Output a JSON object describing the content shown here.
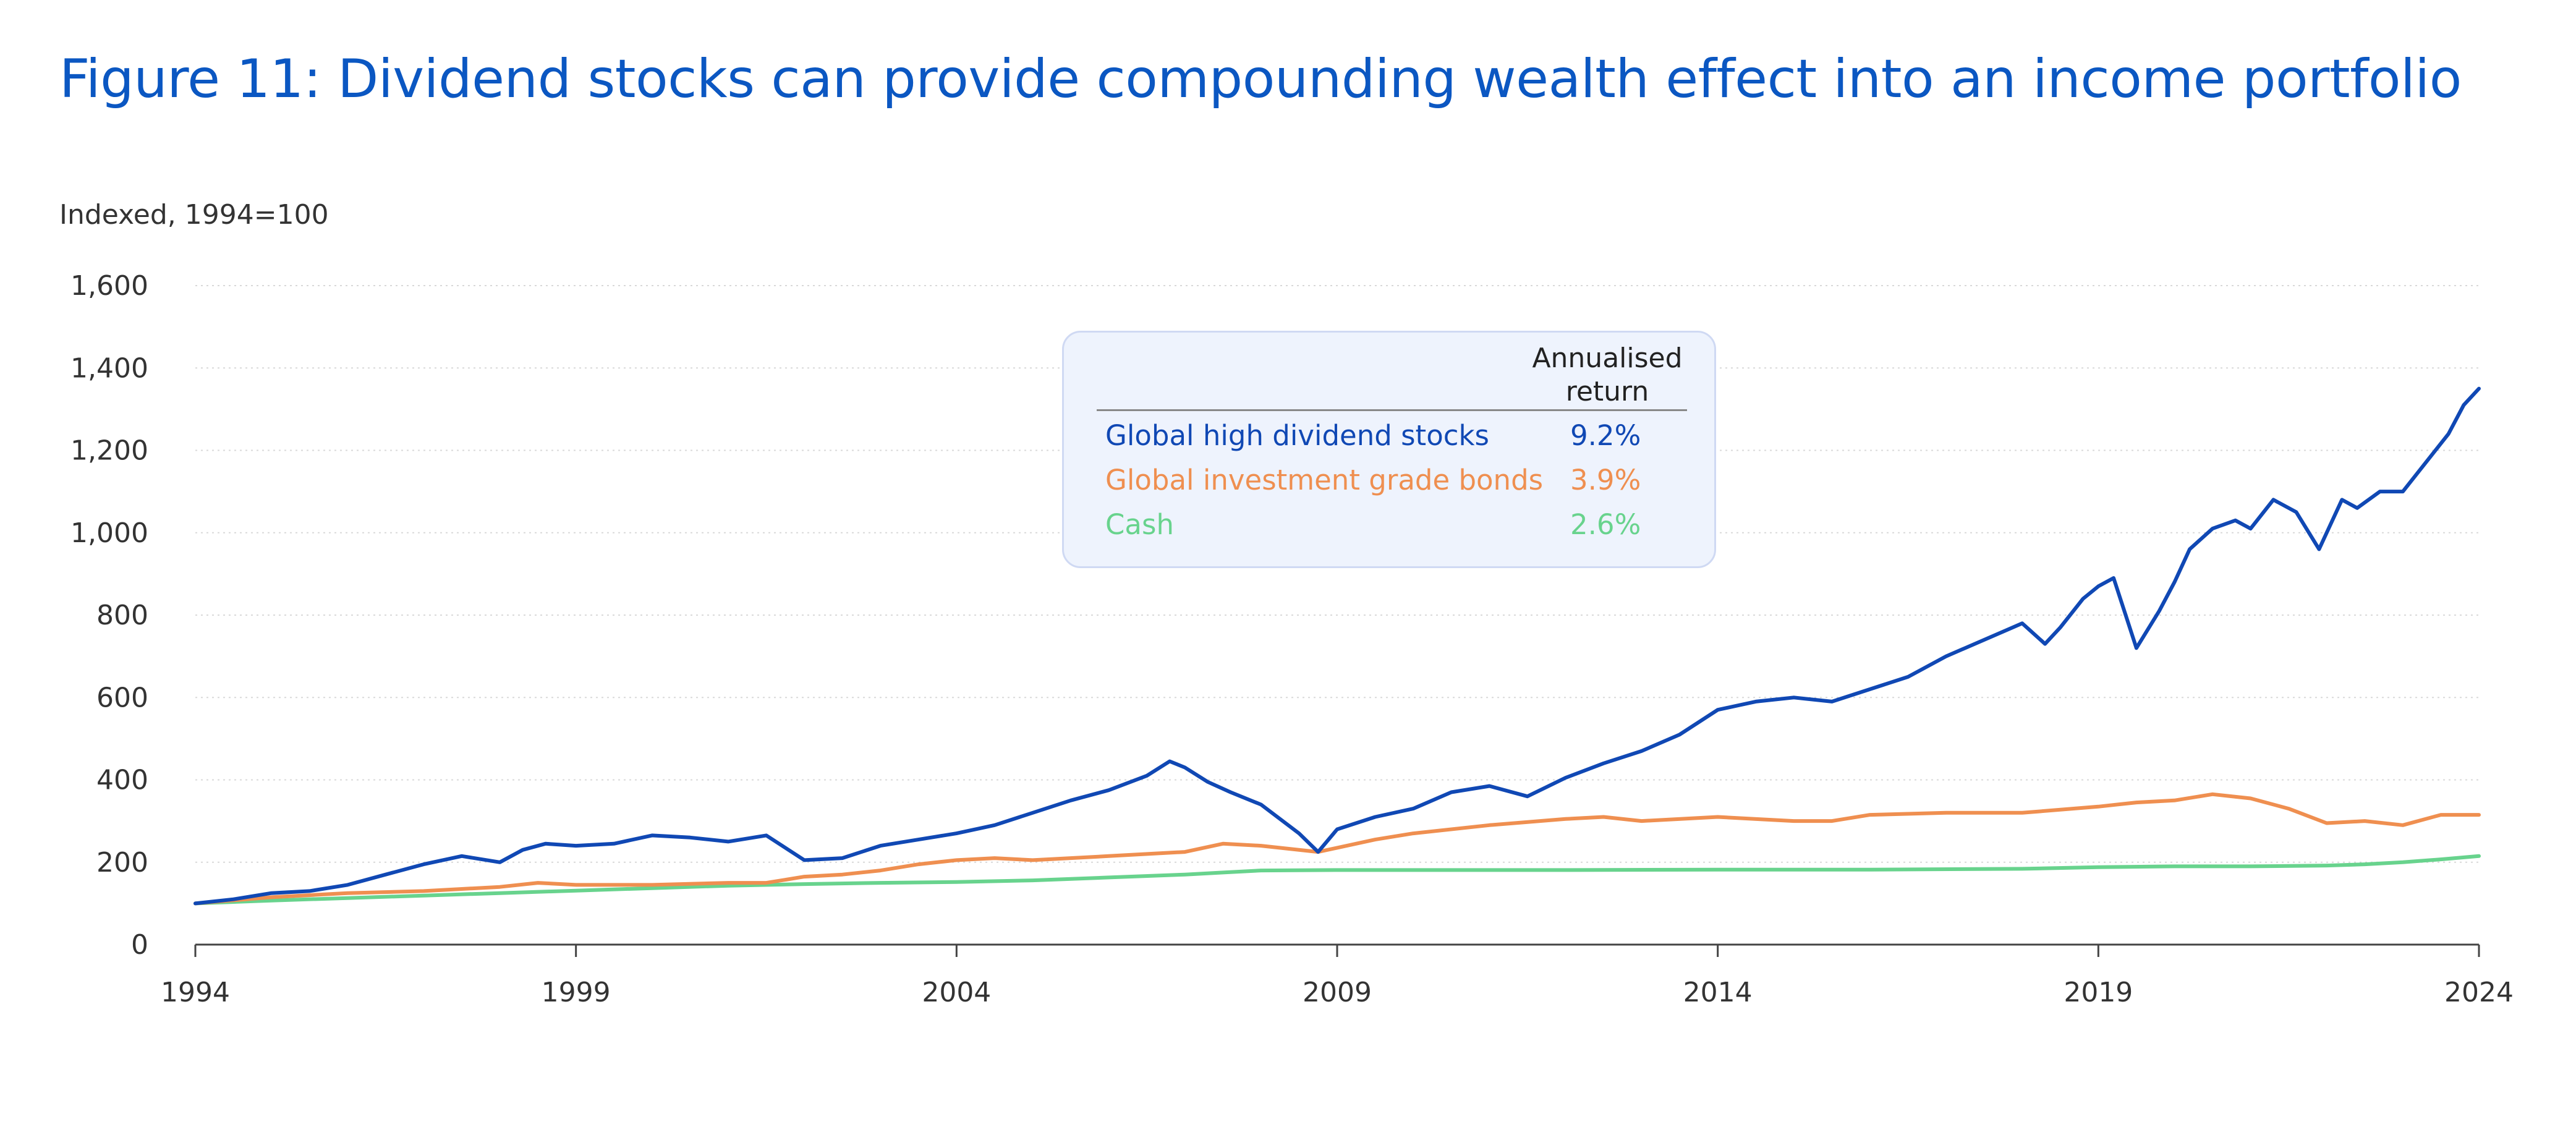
{
  "title": "Figure 11: Dividend stocks can provide compounding wealth effect into an income portfolio",
  "legend_header": {
    "line1": "Annualised",
    "line2": "return"
  },
  "legend": [
    {
      "name": "Global high dividend stocks",
      "value": "9.2%",
      "color": "#1048b4"
    },
    {
      "name": "Global investment grade bonds",
      "value": "3.9%",
      "color": "#ef8f50"
    },
    {
      "name": "Cash",
      "value": "2.6%",
      "color": "#68d38d"
    }
  ],
  "chart_data": {
    "type": "line",
    "ylabel": "Indexed, 1994=100",
    "ylim": [
      0,
      1600
    ],
    "yticks": [
      0,
      200,
      400,
      600,
      800,
      1000,
      1200,
      1400,
      1600
    ],
    "ytick_labels": [
      "0",
      "200",
      "400",
      "600",
      "800",
      "1,000",
      "1,200",
      "1,400",
      "1,600"
    ],
    "xlim": [
      1994,
      2024
    ],
    "xticks": [
      1994,
      1999,
      2004,
      2009,
      2014,
      2019,
      2024
    ],
    "xtick_labels": [
      "1994",
      "1999",
      "2004",
      "2009",
      "2014",
      "2019",
      "2024"
    ],
    "grid": "horizontal dotted",
    "series": [
      {
        "name": "Global high dividend stocks",
        "color": "#1048b4",
        "x": [
          1994.0,
          1994.5,
          1995.0,
          1995.5,
          1996.0,
          1996.5,
          1997.0,
          1997.5,
          1998.0,
          1998.3,
          1998.6,
          1999.0,
          1999.5,
          2000.0,
          2000.5,
          2001.0,
          2001.5,
          2002.0,
          2002.5,
          2003.0,
          2003.5,
          2004.0,
          2004.5,
          2005.0,
          2005.5,
          2006.0,
          2006.5,
          2006.8,
          2007.0,
          2007.3,
          2007.6,
          2008.0,
          2008.5,
          2008.75,
          2009.0,
          2009.5,
          2010.0,
          2010.5,
          2011.0,
          2011.5,
          2012.0,
          2012.5,
          2013.0,
          2013.5,
          2014.0,
          2014.5,
          2015.0,
          2015.5,
          2016.0,
          2016.5,
          2017.0,
          2017.5,
          2018.0,
          2018.3,
          2018.5,
          2018.8,
          2019.0,
          2019.2,
          2019.5,
          2019.8,
          2020.0,
          2020.2,
          2020.5,
          2020.8,
          2021.0,
          2021.3,
          2021.6,
          2021.9,
          2022.2,
          2022.4,
          2022.7,
          2023.0,
          2023.3,
          2023.6,
          2023.8,
          2024.0
        ],
        "y": [
          100,
          110,
          125,
          130,
          145,
          170,
          195,
          215,
          200,
          230,
          245,
          240,
          245,
          265,
          260,
          250,
          265,
          205,
          210,
          240,
          255,
          270,
          290,
          320,
          350,
          375,
          410,
          445,
          430,
          395,
          370,
          340,
          270,
          225,
          280,
          310,
          330,
          370,
          385,
          360,
          405,
          440,
          470,
          510,
          570,
          590,
          600,
          590,
          620,
          650,
          700,
          740,
          780,
          730,
          770,
          840,
          870,
          890,
          720,
          810,
          880,
          960,
          1010,
          1030,
          1010,
          1080,
          1050,
          960,
          1080,
          1060,
          1100,
          1100,
          1170,
          1240,
          1310,
          1350
        ]
      },
      {
        "name": "Global investment grade bonds",
        "color": "#ef8f50",
        "x": [
          1994.0,
          1995.0,
          1996.0,
          1997.0,
          1998.0,
          1998.5,
          1999.0,
          2000.0,
          2001.0,
          2001.5,
          2002.0,
          2002.5,
          2003.0,
          2003.5,
          2004.0,
          2004.5,
          2005.0,
          2006.0,
          2007.0,
          2007.5,
          2008.0,
          2008.75,
          2009.0,
          2009.5,
          2010.0,
          2011.0,
          2012.0,
          2012.5,
          2013.0,
          2014.0,
          2015.0,
          2015.5,
          2016.0,
          2017.0,
          2018.0,
          2019.0,
          2019.5,
          2020.0,
          2020.5,
          2021.0,
          2021.5,
          2022.0,
          2022.5,
          2023.0,
          2023.5,
          2024.0
        ],
        "y": [
          100,
          115,
          125,
          130,
          140,
          150,
          145,
          145,
          150,
          150,
          165,
          170,
          180,
          195,
          205,
          210,
          205,
          215,
          225,
          245,
          240,
          225,
          235,
          255,
          270,
          290,
          305,
          310,
          300,
          310,
          300,
          300,
          315,
          320,
          320,
          335,
          345,
          350,
          365,
          355,
          330,
          295,
          300,
          290,
          315,
          315
        ]
      },
      {
        "name": "Cash",
        "color": "#68d38d",
        "x": [
          1994.0,
          1995.0,
          1996.0,
          1997.0,
          1998.0,
          1999.0,
          2000.0,
          2001.0,
          2002.0,
          2003.0,
          2004.0,
          2005.0,
          2006.0,
          2007.0,
          2007.5,
          2008.0,
          2009.0,
          2010.0,
          2012.0,
          2014.0,
          2016.0,
          2018.0,
          2019.0,
          2020.0,
          2021.0,
          2022.0,
          2022.5,
          2023.0,
          2023.5,
          2024.0
        ],
        "y": [
          100,
          107,
          113,
          119,
          125,
          131,
          137,
          143,
          147,
          150,
          152,
          156,
          163,
          170,
          175,
          180,
          181,
          181,
          181,
          182,
          182,
          184,
          188,
          190,
          190,
          192,
          195,
          200,
          207,
          215
        ]
      }
    ]
  }
}
